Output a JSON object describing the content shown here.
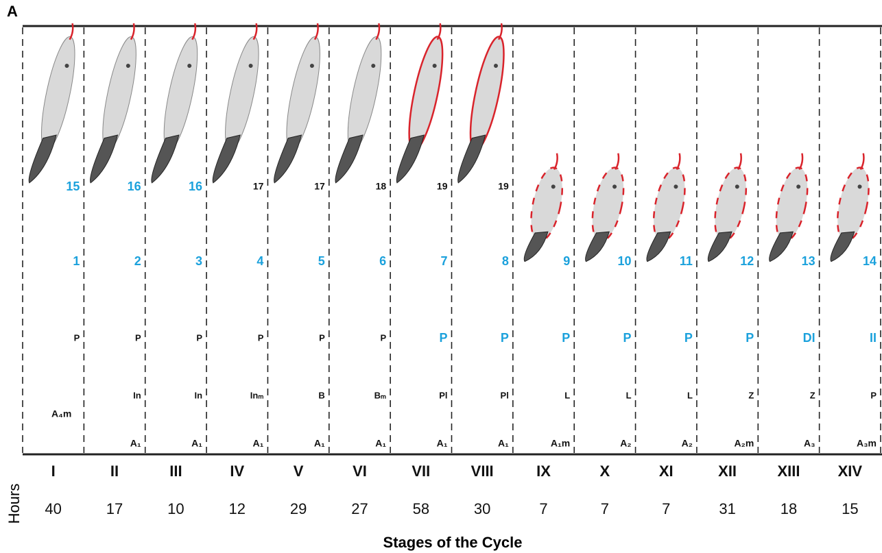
{
  "panel_label": "A",
  "hours_label": "Hours",
  "axis_title": "Stages of the Cycle",
  "colors": {
    "highlight": "#1ba1dc",
    "outline": "#d9232b",
    "text": "#111111"
  },
  "columns": [
    {
      "stage": "I",
      "hours": 40,
      "spermatid_step": {
        "text": "15",
        "highlight": true
      },
      "step": "1",
      "spermatocyte": {
        "text": "P",
        "highlight": false
      },
      "spermatogonia": "A₄m"
    },
    {
      "stage": "II",
      "hours": 17,
      "spermatid_step": {
        "text": "16",
        "highlight": true
      },
      "step": "2",
      "spermatocyte": {
        "text": "P",
        "highlight": false
      },
      "early_spermatocyte": "In",
      "spermatogonia": "A₁"
    },
    {
      "stage": "III",
      "hours": 10,
      "spermatid_step": {
        "text": "16",
        "highlight": true
      },
      "step": "3",
      "spermatocyte": {
        "text": "P",
        "highlight": false
      },
      "early_spermatocyte": "In",
      "spermatogonia": "A₁"
    },
    {
      "stage": "IV",
      "hours": 12,
      "spermatid_step": {
        "text": "17",
        "highlight": false
      },
      "step": "4",
      "spermatocyte": {
        "text": "P",
        "highlight": false
      },
      "early_spermatocyte": "Inₘ",
      "spermatogonia": "A₁"
    },
    {
      "stage": "V",
      "hours": 29,
      "spermatid_step": {
        "text": "17",
        "highlight": false
      },
      "step": "5",
      "spermatocyte": {
        "text": "P",
        "highlight": false
      },
      "early_spermatocyte": "B",
      "spermatogonia": "A₁"
    },
    {
      "stage": "VI",
      "hours": 27,
      "spermatid_step": {
        "text": "18",
        "highlight": false
      },
      "step": "6",
      "spermatocyte": {
        "text": "P",
        "highlight": false
      },
      "early_spermatocyte": "Bₘ",
      "spermatogonia": "A₁"
    },
    {
      "stage": "VII",
      "hours": 58,
      "spermatid_step": {
        "text": "19",
        "highlight": false
      },
      "step": "7",
      "spermatocyte": {
        "text": "P",
        "highlight": true
      },
      "early_spermatocyte": "Pl",
      "spermatogonia": "A₁"
    },
    {
      "stage": "VIII",
      "hours": 30,
      "spermatid_step": {
        "text": "19",
        "highlight": false
      },
      "step": "8",
      "spermatocyte": {
        "text": "P",
        "highlight": true
      },
      "early_spermatocyte": "Pl",
      "spermatogonia": "A₁"
    },
    {
      "stage": "IX",
      "hours": 7,
      "step": "9",
      "spermatocyte": {
        "text": "P",
        "highlight": true
      },
      "early_spermatocyte": "L",
      "spermatogonia": "A₁m"
    },
    {
      "stage": "X",
      "hours": 7,
      "step": "10",
      "spermatocyte": {
        "text": "P",
        "highlight": true
      },
      "early_spermatocyte": "L",
      "spermatogonia": "A₂"
    },
    {
      "stage": "XI",
      "hours": 7,
      "step": "11",
      "spermatocyte": {
        "text": "P",
        "highlight": true
      },
      "early_spermatocyte": "L",
      "spermatogonia": "A₂"
    },
    {
      "stage": "XII",
      "hours": 31,
      "step": "12",
      "spermatocyte": {
        "text": "P",
        "highlight": true
      },
      "early_spermatocyte": "Z",
      "spermatogonia": "A₂m"
    },
    {
      "stage": "XIII",
      "hours": 18,
      "step": "13",
      "spermatocyte": {
        "text": "DI",
        "highlight": true
      },
      "early_spermatocyte": "Z",
      "spermatogonia": "A₃"
    },
    {
      "stage": "XIV",
      "hours": 15,
      "step": "14",
      "spermatocyte": {
        "text": "II",
        "highlight": true
      },
      "early_spermatocyte": "P",
      "spermatogonia": "A₃m"
    }
  ]
}
